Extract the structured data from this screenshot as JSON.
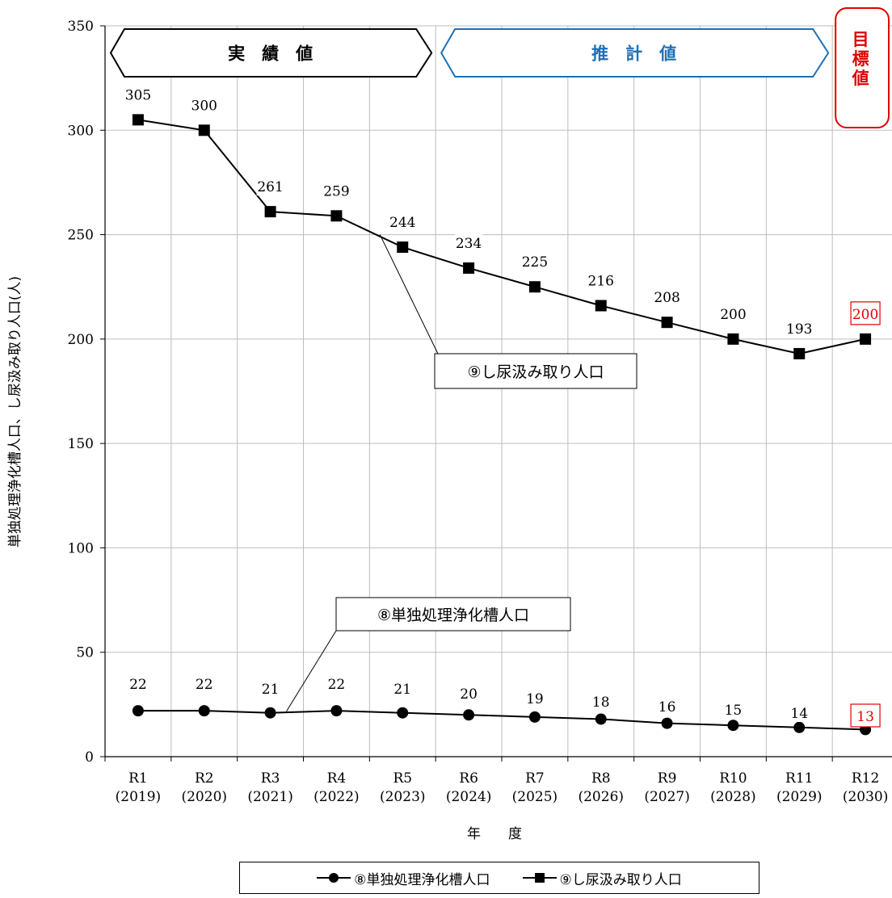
{
  "chart_data": {
    "type": "line",
    "categories": [
      "R1",
      "R2",
      "R3",
      "R4",
      "R5",
      "R6",
      "R7",
      "R8",
      "R9",
      "R10",
      "R11",
      "R12"
    ],
    "category_years": [
      "(2019)",
      "(2020)",
      "(2021)",
      "(2022)",
      "(2023)",
      "(2024)",
      "(2025)",
      "(2026)",
      "(2027)",
      "(2028)",
      "(2029)",
      "(2030)"
    ],
    "series": [
      {
        "name": "⑧単独処理浄化槽人口",
        "marker": "circle",
        "values": [
          22,
          22,
          21,
          22,
          21,
          20,
          19,
          18,
          16,
          15,
          14,
          13
        ]
      },
      {
        "name": "⑨し尿汲み取り人口",
        "marker": "square",
        "values": [
          305,
          300,
          261,
          259,
          244,
          234,
          225,
          216,
          208,
          200,
          193,
          200
        ]
      }
    ],
    "ylim": [
      0,
      350
    ],
    "yticks": [
      "0",
      "50",
      "100",
      "150",
      "200",
      "250",
      "300",
      "350"
    ],
    "ylabel": "単独処理浄化槽人口、し尿汲み取り人口(人)",
    "xlabel": "年　　度",
    "grid": true,
    "legend": "bottom",
    "period_headers": [
      {
        "label": "実　績　値",
        "from": "R1",
        "to": "R5",
        "color": "#000000"
      },
      {
        "label": "推　計　値",
        "from": "R6",
        "to": "R11",
        "color": "#1f6fb5"
      },
      {
        "label": "目標値",
        "from": "R12",
        "to": "R12",
        "color": "#e00000"
      }
    ],
    "callouts": [
      {
        "text": "⑨し尿汲み取り人口",
        "series": "⑨し尿汲み取り人口",
        "point": "R5"
      },
      {
        "text": "⑧単独処理浄化槽人口",
        "series": "⑧単独処理浄化槽人口",
        "point": "R3"
      }
    ],
    "highlight_color": "#e00000"
  }
}
